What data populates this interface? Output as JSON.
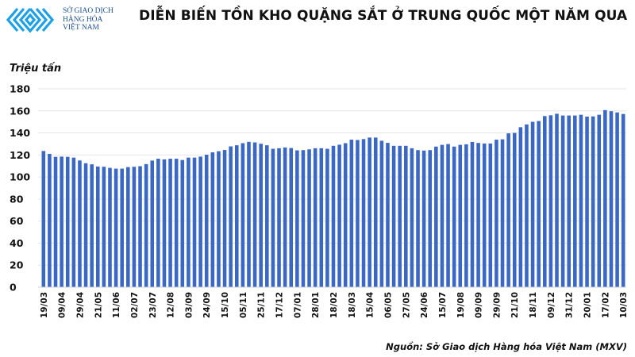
{
  "header": {
    "logo_text": [
      "SỞ GIAO DỊCH",
      "HÀNG HÓA",
      "VIỆT NAM"
    ],
    "title": "DIỄN BIẾN TỒN KHO QUẶNG SẮT Ở TRUNG QUỐC MỘT NĂM QUA",
    "brand_color": "#1ea0e6"
  },
  "footer": {
    "source": "Nguồn: Sở Giao dịch Hàng hóa Việt Nam (MXV)"
  },
  "chart_data": {
    "type": "bar",
    "title": "DIỄN BIẾN TỒN KHO QUẶNG SẮT Ở TRUNG QUỐC MỘT NĂM QUA",
    "ylabel": "Triệu tấn",
    "xlabel": "",
    "ylim": [
      0,
      180
    ],
    "yticks": [
      0,
      20,
      40,
      60,
      80,
      100,
      120,
      140,
      160,
      180
    ],
    "grid": true,
    "bar_color": "#3a68c4",
    "tick_labels": [
      "19/03",
      "09/04",
      "29/04",
      "21/05",
      "11/06",
      "02/07",
      "23/07",
      "12/08",
      "03/09",
      "24/09",
      "15/10",
      "05/11",
      "25/11",
      "17/12",
      "07/01",
      "28/01",
      "18/02",
      "18/03",
      "15/04",
      "06/05",
      "27/05",
      "24/06",
      "15/07",
      "19/08",
      "09/09",
      "29/09",
      "21/10",
      "18/11",
      "09/12",
      "31/12",
      "20/01",
      "17/02",
      "10/03"
    ],
    "label_every": 3,
    "values": [
      123.6,
      121,
      118.3,
      118.5,
      118.3,
      117.6,
      115,
      112.5,
      111.5,
      109.5,
      109.3,
      108.3,
      107.6,
      107.6,
      109,
      109.3,
      109.8,
      111.7,
      114.9,
      116.6,
      116,
      116.6,
      116.6,
      115.4,
      117.6,
      117.6,
      118.5,
      120.2,
      122.4,
      123.4,
      124.5,
      127.8,
      128.8,
      130.7,
      131.9,
      131.4,
      130.2,
      128.8,
      125.6,
      126.1,
      126.8,
      126.3,
      124.2,
      124.4,
      125.1,
      126.1,
      126.1,
      125.6,
      128.3,
      129.3,
      130.7,
      133.9,
      133.6,
      134.4,
      135.8,
      135.8,
      132.9,
      131,
      128.3,
      128.3,
      128.3,
      126.1,
      124.4,
      124,
      124.4,
      127.6,
      129.2,
      129.9,
      127.6,
      129.2,
      129.7,
      131.8,
      130.9,
      130.4,
      130.4,
      133.9,
      134.2,
      139.6,
      140,
      145.2,
      147.7,
      150.1,
      150.8,
      155.3,
      156,
      157.4,
      155.8,
      155.8,
      155.8,
      156.5,
      154.8,
      155,
      156.5,
      160.7,
      159.7,
      158.6,
      157.2
    ],
    "source": "Nguồn: Sở Giao dịch Hàng hóa Việt Nam (MXV)"
  }
}
